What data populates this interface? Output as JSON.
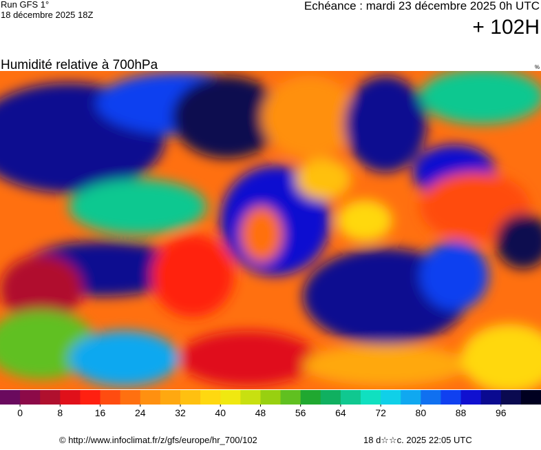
{
  "header": {
    "run": "Run GFS 1°",
    "run_date": "18 décembre 2025 18Z",
    "forecast": "Echéance : mardi 23 décembre 2025 0h UTC",
    "lead": "+ 102H"
  },
  "map": {
    "title": "Humidité relative à 700hPa",
    "unit": "%"
  },
  "colorbar": {
    "colors": [
      "#6a0a5e",
      "#8c0a48",
      "#b0102e",
      "#e0101a",
      "#ff2010",
      "#ff4c10",
      "#ff7010",
      "#ff9010",
      "#ffa810",
      "#ffc010",
      "#ffd810",
      "#f0e810",
      "#c8e010",
      "#98d010",
      "#60c020",
      "#20a830",
      "#10b060",
      "#10c890",
      "#10e0c0",
      "#10d0e8",
      "#10a8f0",
      "#1070f0",
      "#1040f0",
      "#1010d0",
      "#0a0a90",
      "#0a0a50",
      "#000020"
    ],
    "lim": [
      -4,
      104
    ],
    "ticks": [
      0,
      8,
      16,
      24,
      32,
      40,
      48,
      56,
      64,
      72,
      80,
      88,
      96
    ]
  },
  "footer": {
    "source": "© http://www.infoclimat.fr/z/gfs/europe/hr_700/102",
    "timestamp": "18 d☆☆c. 2025 22:05 UTC"
  }
}
